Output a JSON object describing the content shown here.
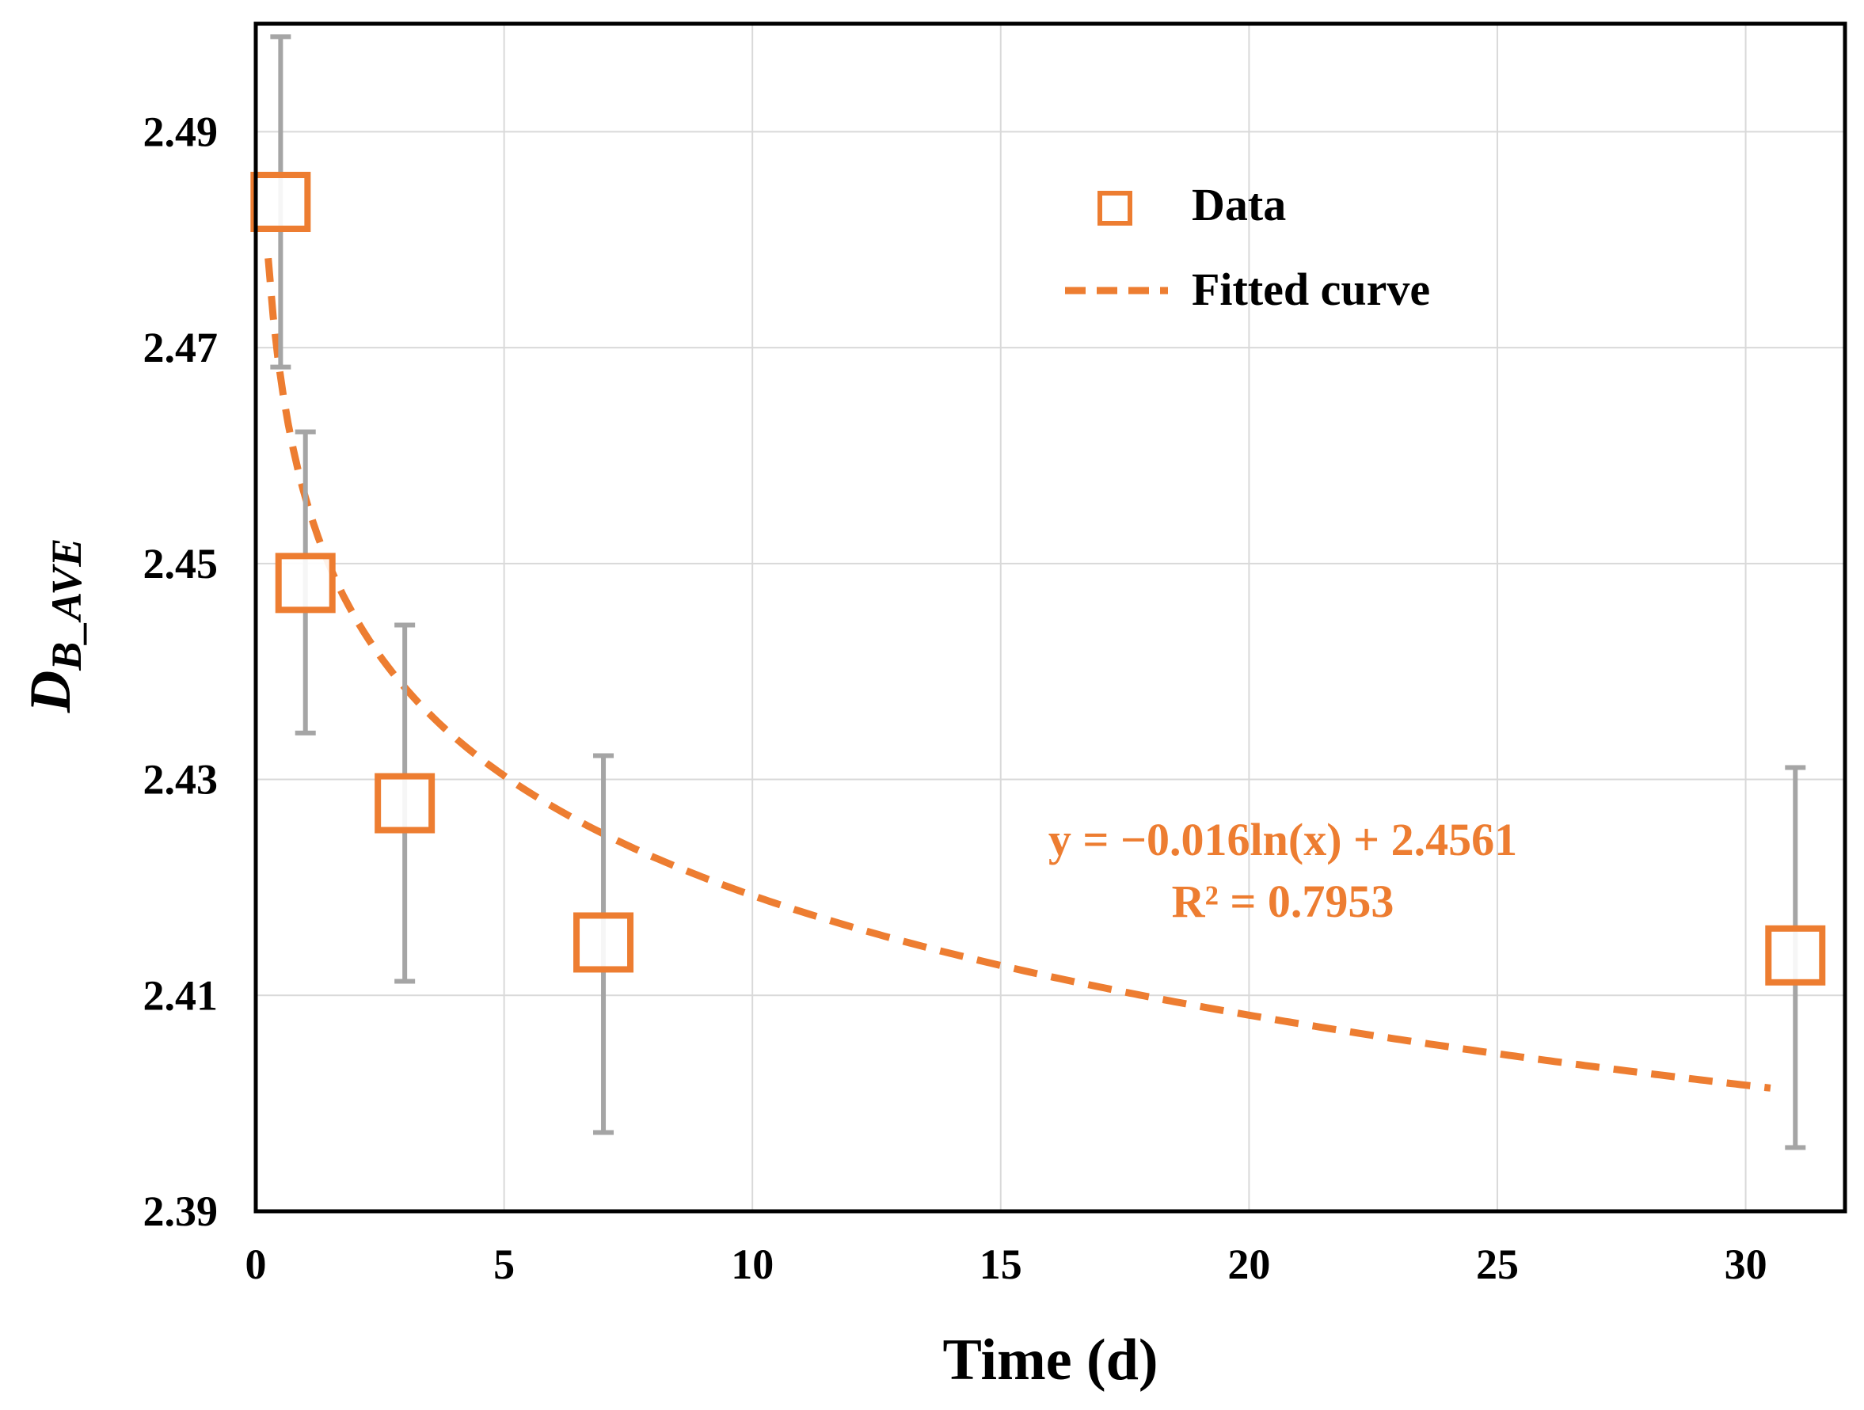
{
  "chart_data": {
    "type": "scatter",
    "xlabel": "Time (d)",
    "ylabel": {
      "main": "D",
      "subscript": "B_AVE"
    },
    "xlim": [
      0,
      32
    ],
    "ylim": [
      2.39,
      2.5
    ],
    "xticks": [
      0,
      5,
      10,
      15,
      20,
      25,
      30
    ],
    "xtick_labels": [
      "0",
      "5",
      "10",
      "15",
      "20",
      "25",
      "30"
    ],
    "yticks": [
      2.39,
      2.41,
      2.43,
      2.45,
      2.47,
      2.49
    ],
    "ytick_labels": [
      "2.39",
      "2.41",
      "2.43",
      "2.45",
      "2.47",
      "2.49"
    ],
    "grid": true,
    "legend_position": "top-right",
    "legend": [
      {
        "label": "Data",
        "kind": "marker"
      },
      {
        "label": "Fitted curve",
        "kind": "dashed-line"
      }
    ],
    "series": [
      {
        "name": "Data",
        "x": [
          0.5,
          1,
          3,
          7,
          31
        ],
        "y": [
          2.4835,
          2.4482,
          2.4278,
          2.4149,
          2.4137
        ],
        "error_low": [
          2.4682,
          2.4343,
          2.4113,
          2.3973,
          2.3959
        ],
        "error_high": [
          2.4988,
          2.4622,
          2.4443,
          2.4322,
          2.4311
        ]
      }
    ],
    "fit": {
      "name": "Fitted curve",
      "type": "log",
      "a": -0.016,
      "b": 2.4561,
      "x_range": [
        0.25,
        30.5
      ]
    },
    "annotations": {
      "equation": "y = −0.016ln(x) + 2.4561",
      "r2": "R² = 0.7953"
    },
    "colors": {
      "data": "#ED7D31",
      "error": "#A5A5A5",
      "grid": "#D9D9D9",
      "axis": "#000000"
    }
  }
}
